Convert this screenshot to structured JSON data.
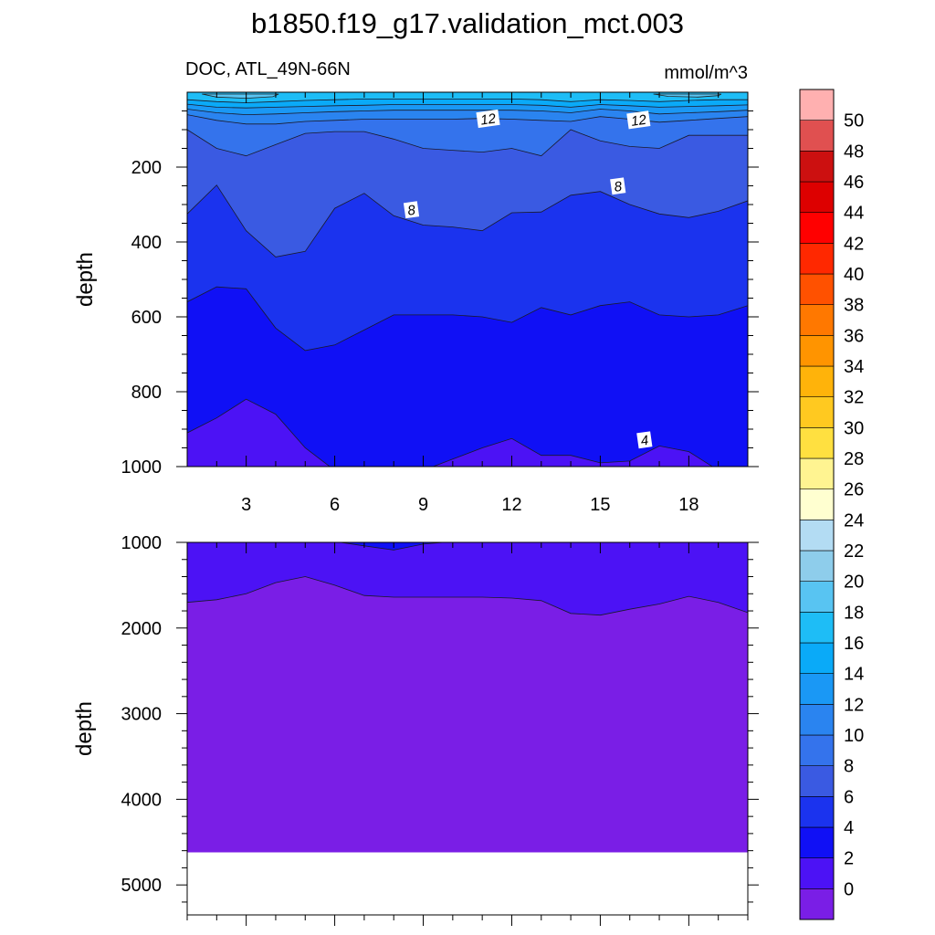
{
  "chart_data": [
    {
      "type": "contour",
      "panel": "upper",
      "title": "b1850.f19_g17.validation_mct.003",
      "left_title": "DOC, ATL_49N-66N",
      "right_title": "mmol/m^3",
      "xlabel": "",
      "ylabel": "depth",
      "xlim": [
        1,
        20
      ],
      "ylim": [
        1000,
        0
      ],
      "x_ticks": [
        3,
        6,
        9,
        12,
        15,
        18
      ],
      "y_ticks": [
        200,
        400,
        600,
        800,
        1000
      ],
      "contour_interval": 2,
      "contour_labels": [
        {
          "text": "12",
          "x": 11.2,
          "depth": 72
        },
        {
          "text": "12",
          "x": 16.3,
          "depth": 75
        },
        {
          "text": "8",
          "x": 15.6,
          "depth": 252
        },
        {
          "text": "8",
          "x": 8.6,
          "depth": 315
        },
        {
          "text": "4",
          "x": 16.5,
          "depth": 930
        }
      ],
      "levels": [
        {
          "value": 2,
          "depths": [
            1010,
            1010,
            1010,
            1010,
            1010,
            1010,
            1010,
            1010,
            1010,
            1010,
            1010,
            1010,
            1010,
            1010,
            1010,
            1010,
            1010,
            1010,
            1010,
            1010
          ]
        },
        {
          "value": 4,
          "depths": [
            910,
            870,
            820,
            860,
            950,
            1010,
            1010,
            1010,
            1010,
            980,
            950,
            925,
            970,
            970,
            990,
            985,
            945,
            960,
            1010,
            1010
          ]
        },
        {
          "value": 6,
          "depths": [
            560,
            520,
            525,
            630,
            690,
            675,
            635,
            595,
            595,
            595,
            600,
            615,
            575,
            595,
            570,
            560,
            595,
            600,
            595,
            570
          ]
        },
        {
          "value": 8,
          "depths": [
            325,
            248,
            370,
            440,
            425,
            310,
            270,
            330,
            355,
            360,
            370,
            322,
            320,
            275,
            265,
            300,
            325,
            335,
            318,
            290
          ]
        },
        {
          "value": 10,
          "depths": [
            100,
            150,
            170,
            140,
            110,
            105,
            105,
            125,
            150,
            155,
            160,
            150,
            170,
            100,
            130,
            145,
            150,
            115,
            115,
            115
          ]
        },
        {
          "value": 12,
          "depths": [
            60,
            75,
            85,
            85,
            78,
            75,
            72,
            72,
            72,
            72,
            70,
            72,
            75,
            78,
            65,
            72,
            80,
            75,
            70,
            65
          ]
        },
        {
          "value": 14,
          "depths": [
            45,
            55,
            60,
            58,
            55,
            52,
            50,
            48,
            48,
            48,
            48,
            48,
            50,
            55,
            45,
            50,
            58,
            55,
            52,
            48
          ]
        },
        {
          "value": 16,
          "depths": [
            32,
            40,
            42,
            40,
            38,
            36,
            35,
            33,
            33,
            33,
            33,
            33,
            35,
            40,
            33,
            36,
            40,
            38,
            36,
            34
          ]
        },
        {
          "value": 18,
          "depths": [
            20,
            25,
            28,
            25,
            22,
            20,
            18,
            18,
            18,
            18,
            18,
            18,
            20,
            25,
            20,
            22,
            25,
            22,
            20,
            20
          ]
        }
      ],
      "patches": [
        {
          "value": 20,
          "points": [
            [
              1.5,
              5
            ],
            [
              2.0,
              13
            ],
            [
              3.0,
              16
            ],
            [
              3.9,
              12
            ],
            [
              4.1,
              5
            ]
          ]
        },
        {
          "value": 20,
          "points": [
            [
              16.8,
              5
            ],
            [
              17.3,
              11
            ],
            [
              18.3,
              13
            ],
            [
              19.0,
              9
            ],
            [
              19.1,
              5
            ]
          ]
        }
      ]
    },
    {
      "type": "contour",
      "panel": "lower",
      "xlabel": "",
      "ylabel": "depth",
      "xlim": [
        1,
        20
      ],
      "ylim": [
        5350,
        1000
      ],
      "y_ticks": [
        1000,
        2000,
        3000,
        4000,
        5000
      ],
      "bottom_depth": 4620,
      "levels": [
        {
          "value": 2,
          "depths": [
            1700,
            1670,
            1600,
            1470,
            1400,
            1500,
            1620,
            1640,
            1640,
            1640,
            1640,
            1650,
            1680,
            1830,
            1850,
            1780,
            1720,
            1630,
            1700,
            1820
          ]
        },
        {
          "value": 4,
          "depths": [
            990,
            990,
            990,
            990,
            990,
            990,
            1040,
            1090,
            1020,
            990,
            990,
            990,
            990,
            990,
            990,
            990,
            990,
            990,
            990,
            990
          ]
        }
      ]
    }
  ],
  "colorbar": {
    "labels": [
      "0",
      "2",
      "4",
      "6",
      "8",
      "10",
      "12",
      "14",
      "16",
      "18",
      "20",
      "22",
      "24",
      "26",
      "28",
      "30",
      "32",
      "34",
      "36",
      "38",
      "40",
      "42",
      "44",
      "46",
      "48",
      "50"
    ],
    "colors": [
      "#7a1ee6",
      "#4c12f5",
      "#1010f5",
      "#1b33ee",
      "#3a5ae2",
      "#3473ec",
      "#2a84f0",
      "#1a98f5",
      "#0aaaf8",
      "#1ebdf6",
      "#58c4f2",
      "#8ecdeb",
      "#b3dcf3",
      "#ffffd0",
      "#fff491",
      "#ffe040",
      "#ffc920",
      "#ffb30a",
      "#ff9400",
      "#ff7800",
      "#ff5100",
      "#ff2800",
      "#ff0000",
      "#dd0000",
      "#cc1010",
      "#e05050",
      "#ffb0b0"
    ]
  }
}
